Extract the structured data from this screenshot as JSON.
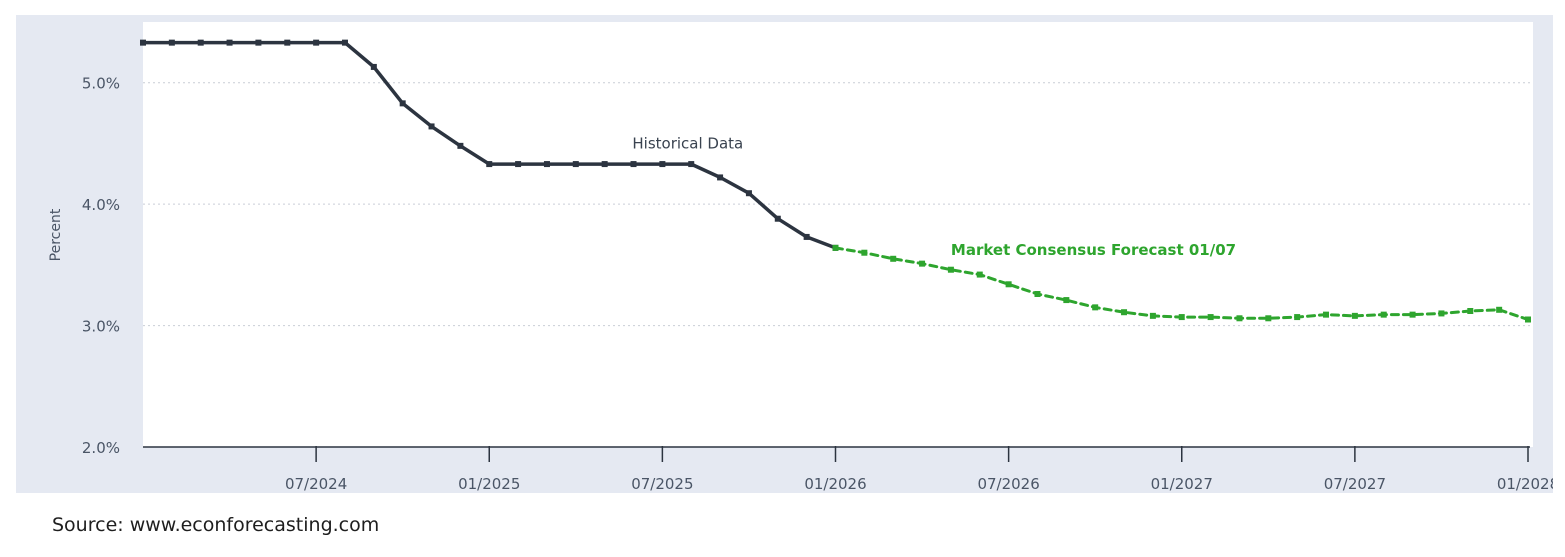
{
  "chart_data": {
    "type": "line",
    "ylabel": "Percent",
    "ylim": [
      2.0,
      5.5
    ],
    "y_ticks": [
      "2.0%",
      "3.0%",
      "4.0%",
      "5.0%"
    ],
    "y_tick_values": [
      2.0,
      3.0,
      4.0,
      5.0
    ],
    "x_ticks": [
      "07/2024",
      "01/2025",
      "07/2025",
      "01/2026",
      "07/2026",
      "01/2027",
      "07/2027",
      "01/2028"
    ],
    "x_tick_dates": [
      "2024-07",
      "2025-01",
      "2025-07",
      "2026-01",
      "2026-07",
      "2027-01",
      "2027-07",
      "2028-01"
    ],
    "xlim": [
      "2024-01",
      "2028-01"
    ],
    "grid": true,
    "series": [
      {
        "name": "Historical Data",
        "color": "#2c3440",
        "style": "solid",
        "x": [
          "2024-01",
          "2024-02",
          "2024-03",
          "2024-04",
          "2024-05",
          "2024-06",
          "2024-07",
          "2024-08",
          "2024-09",
          "2024-10",
          "2024-11",
          "2024-12",
          "2025-01",
          "2025-02",
          "2025-03",
          "2025-04",
          "2025-05",
          "2025-06",
          "2025-07",
          "2025-08",
          "2025-09",
          "2025-10",
          "2025-11",
          "2025-12",
          "2026-01"
        ],
        "values": [
          5.33,
          5.33,
          5.33,
          5.33,
          5.33,
          5.33,
          5.33,
          5.33,
          5.13,
          4.83,
          4.64,
          4.48,
          4.33,
          4.33,
          4.33,
          4.33,
          4.33,
          4.33,
          4.33,
          4.33,
          4.22,
          4.09,
          3.88,
          3.73,
          3.64
        ]
      },
      {
        "name": "Market Consensus Forecast 01/07",
        "color": "#2ea52e",
        "style": "dashed",
        "x": [
          "2026-01",
          "2026-02",
          "2026-03",
          "2026-04",
          "2026-05",
          "2026-06",
          "2026-07",
          "2026-08",
          "2026-09",
          "2026-10",
          "2026-11",
          "2026-12",
          "2027-01",
          "2027-02",
          "2027-03",
          "2027-04",
          "2027-05",
          "2027-06",
          "2027-07",
          "2027-08",
          "2027-09",
          "2027-10",
          "2027-11",
          "2027-12",
          "2028-01"
        ],
        "values": [
          3.64,
          3.6,
          3.55,
          3.51,
          3.46,
          3.42,
          3.34,
          3.26,
          3.21,
          3.15,
          3.11,
          3.08,
          3.07,
          3.07,
          3.06,
          3.06,
          3.07,
          3.09,
          3.08,
          3.09,
          3.09,
          3.1,
          3.12,
          3.13,
          3.05
        ]
      }
    ],
    "annotations": [
      {
        "text": "Historical Data",
        "x": "2025-07",
        "y": 4.46
      },
      {
        "text": "Market Consensus Forecast 01/07",
        "x": "2026-05",
        "y": 3.58
      }
    ]
  },
  "source": "Source: www.econforecasting.com"
}
